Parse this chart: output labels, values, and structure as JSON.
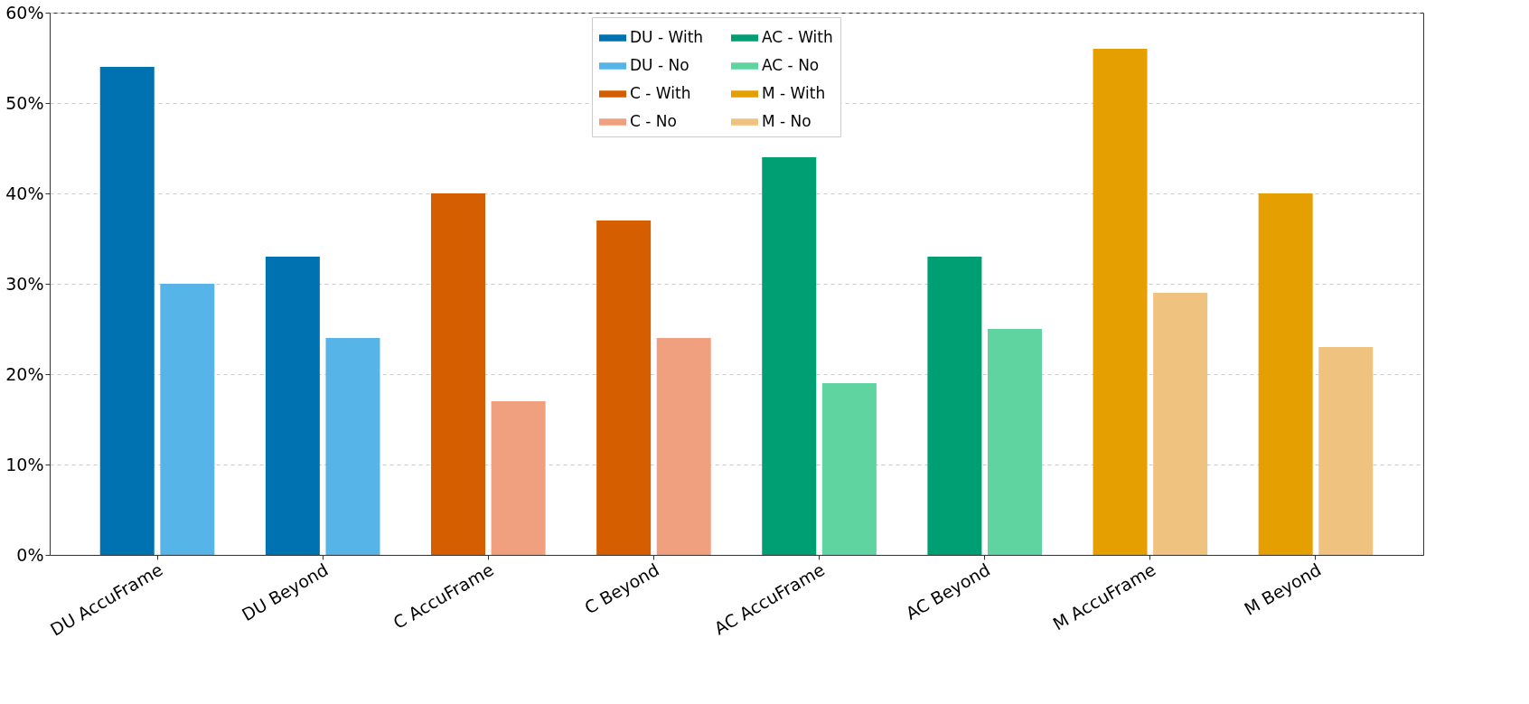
{
  "chart_data": {
    "type": "bar",
    "categories": [
      "DU AccuFrame",
      "DU Beyond",
      "C AccuFrame",
      "C Beyond",
      "AC AccuFrame",
      "AC Beyond",
      "M AccuFrame",
      "M Beyond"
    ],
    "series": [
      {
        "name": "DU - With",
        "color": "#0072b2",
        "values": [
          54,
          33,
          null,
          null,
          null,
          null,
          null,
          null
        ]
      },
      {
        "name": "DU - No",
        "color": "#56b4e9",
        "values": [
          30,
          24,
          null,
          null,
          null,
          null,
          null,
          null
        ]
      },
      {
        "name": "C - With",
        "color": "#d55e00",
        "values": [
          null,
          null,
          40,
          37,
          null,
          null,
          null,
          null
        ]
      },
      {
        "name": "C - No",
        "color": "#f0a07f",
        "values": [
          null,
          null,
          17,
          24,
          null,
          null,
          null,
          null
        ]
      },
      {
        "name": "AC - With",
        "color": "#009e73",
        "values": [
          null,
          null,
          null,
          null,
          44,
          33,
          null,
          null
        ]
      },
      {
        "name": "AC - No",
        "color": "#5fd3a0",
        "values": [
          null,
          null,
          null,
          null,
          19,
          25,
          null,
          null
        ]
      },
      {
        "name": "M - With",
        "color": "#e69f00",
        "values": [
          null,
          null,
          null,
          null,
          null,
          null,
          56,
          40
        ]
      },
      {
        "name": "M - No",
        "color": "#f0c27f",
        "values": [
          null,
          null,
          null,
          null,
          null,
          null,
          29,
          23
        ]
      }
    ],
    "ylim": [
      0,
      60
    ],
    "yticks": [
      {
        "value": 0,
        "label": "0%"
      },
      {
        "value": 10,
        "label": "10%"
      },
      {
        "value": 20,
        "label": "20%"
      },
      {
        "value": 30,
        "label": "30%"
      },
      {
        "value": 40,
        "label": "40%"
      },
      {
        "value": 50,
        "label": "50%"
      },
      {
        "value": 60,
        "label": "60%"
      }
    ],
    "grid": "y",
    "legend": "top"
  }
}
